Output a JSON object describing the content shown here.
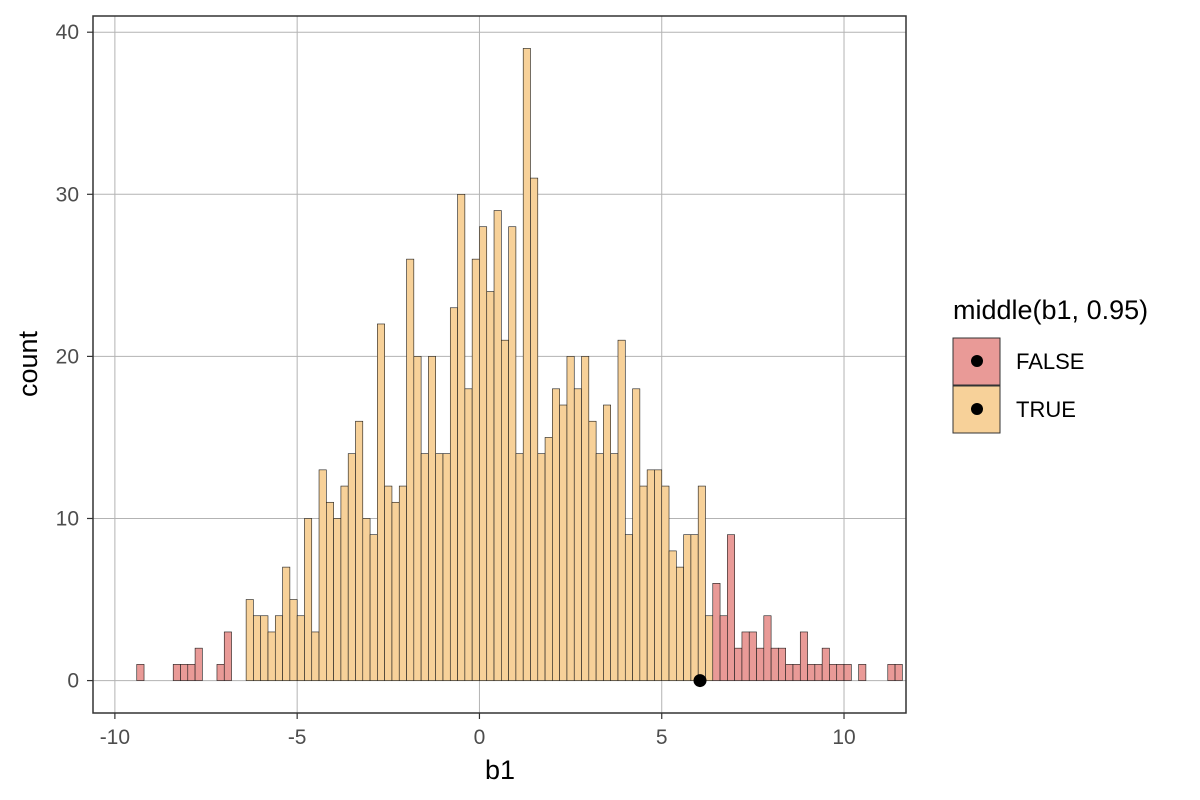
{
  "chart_data": {
    "type": "bar",
    "title": "",
    "xlabel": "b1",
    "ylabel": "count",
    "xlim": [
      -10.6,
      11.7
    ],
    "ylim": [
      -2,
      41
    ],
    "x_ticks": [
      -10,
      -5,
      0,
      5,
      10
    ],
    "x_tick_labels": [
      "-10",
      "-5",
      "0",
      "5",
      "10"
    ],
    "y_ticks": [
      0,
      10,
      20,
      30,
      40
    ],
    "y_tick_labels": [
      "0",
      "10",
      "20",
      "30",
      "40"
    ],
    "grid": true,
    "bin_start": -9.4,
    "bin_width": 0.2,
    "counts": [
      1,
      0,
      0,
      0,
      0,
      1,
      1,
      1,
      2,
      0,
      0,
      1,
      3,
      0,
      0,
      5,
      4,
      4,
      3,
      4,
      7,
      5,
      4,
      10,
      3,
      13,
      11,
      10,
      12,
      14,
      16,
      10,
      9,
      22,
      12,
      11,
      12,
      26,
      20,
      14,
      20,
      14,
      14,
      23,
      30,
      18,
      26,
      28,
      24,
      29,
      21,
      28,
      14,
      39,
      31,
      14,
      15,
      18,
      17,
      20,
      18,
      20,
      16,
      14,
      17,
      14,
      21,
      9,
      18,
      12,
      13,
      13,
      12,
      8,
      7,
      9,
      9,
      12,
      4,
      6,
      4,
      9,
      2,
      3,
      3,
      2,
      4,
      2,
      2,
      1,
      1,
      3,
      1,
      1,
      2,
      1,
      1,
      1,
      0,
      1,
      0,
      0,
      0,
      1,
      1
    ],
    "middle_range": [
      6.0,
      9.0
    ],
    "series": [
      {
        "name": "FALSE",
        "color": "#e99a97"
      },
      {
        "name": "TRUE",
        "color": "#f7d199"
      }
    ],
    "point": {
      "x": 6.05,
      "y": 0
    },
    "legend": {
      "title": "middle(b1, 0.95)",
      "placement": "right",
      "items": [
        "FALSE",
        "TRUE"
      ]
    }
  },
  "colors": {
    "false_fill": "#e99a97",
    "true_fill": "#f7d199",
    "bar_outline": "#1a1a1a",
    "grid": "#b3b3b3",
    "panel_border": "#333333"
  }
}
